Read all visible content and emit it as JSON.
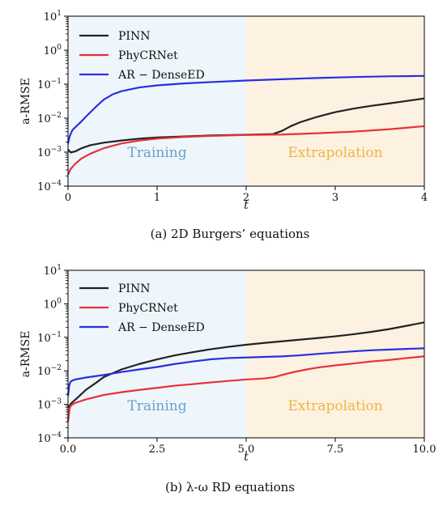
{
  "chart_data": [
    {
      "type": "line",
      "caption": "(a)  2D Burgers’ equations",
      "xlabel": "t",
      "ylabel": "a-RMSE",
      "xlim": [
        0,
        4
      ],
      "ylim": [
        0.0001,
        10
      ],
      "yscale": "log",
      "xticks": [
        0,
        1,
        2,
        3,
        4
      ],
      "xtick_labels": [
        "0",
        "1",
        "2",
        "3",
        "4"
      ],
      "yticks": [
        0.0001,
        0.001,
        0.01,
        0.1,
        1,
        10
      ],
      "ytick_labels": [
        {
          "base": "10",
          "exp": "−4"
        },
        {
          "base": "10",
          "exp": "−3"
        },
        {
          "base": "10",
          "exp": "−2"
        },
        {
          "base": "10",
          "exp": "−1"
        },
        {
          "base": "10",
          "exp": "0"
        },
        {
          "base": "10",
          "exp": "1"
        }
      ],
      "regions": [
        {
          "label": "Training",
          "x0": 0,
          "x1": 2,
          "color": "#eef6fb",
          "text_color": "#6b9fc8"
        },
        {
          "label": "Extrapolation",
          "x0": 2,
          "x1": 4,
          "color": "#fdf2e1",
          "text_color": "#f0b342"
        }
      ],
      "legend_position": "top-left",
      "series": [
        {
          "name": "PINN",
          "color": "#222222",
          "points": [
            [
              0,
              0.0012
            ],
            [
              0.03,
              0.00098
            ],
            [
              0.08,
              0.00105
            ],
            [
              0.15,
              0.0013
            ],
            [
              0.25,
              0.0016
            ],
            [
              0.4,
              0.0019
            ],
            [
              0.6,
              0.0022
            ],
            [
              0.8,
              0.0025
            ],
            [
              1,
              0.0027
            ],
            [
              1.3,
              0.0029
            ],
            [
              1.6,
              0.0031
            ],
            [
              1.9,
              0.0032
            ],
            [
              2.1,
              0.0033
            ],
            [
              2.3,
              0.0034
            ],
            [
              2.4,
              0.0042
            ],
            [
              2.5,
              0.0058
            ],
            [
              2.6,
              0.0075
            ],
            [
              2.8,
              0.011
            ],
            [
              3,
              0.015
            ],
            [
              3.2,
              0.019
            ],
            [
              3.4,
              0.023
            ],
            [
              3.6,
              0.027
            ],
            [
              3.8,
              0.032
            ],
            [
              4,
              0.038
            ]
          ]
        },
        {
          "name": "PhyCRNet",
          "color": "#e8303a",
          "points": [
            [
              0,
              0.00022
            ],
            [
              0.03,
              0.00032
            ],
            [
              0.08,
              0.00045
            ],
            [
              0.15,
              0.00065
            ],
            [
              0.25,
              0.0009
            ],
            [
              0.4,
              0.0013
            ],
            [
              0.6,
              0.0018
            ],
            [
              0.8,
              0.0022
            ],
            [
              1,
              0.0025
            ],
            [
              1.3,
              0.0028
            ],
            [
              1.6,
              0.003
            ],
            [
              2,
              0.0032
            ],
            [
              2.4,
              0.0033
            ],
            [
              2.8,
              0.0036
            ],
            [
              3.2,
              0.004
            ],
            [
              3.6,
              0.0047
            ],
            [
              4,
              0.0058
            ]
          ]
        },
        {
          "name": "AR − DenseED",
          "color": "#2a2ee0",
          "points": [
            [
              0,
              0.0018
            ],
            [
              0.02,
              0.003
            ],
            [
              0.05,
              0.0045
            ],
            [
              0.1,
              0.006
            ],
            [
              0.15,
              0.008
            ],
            [
              0.2,
              0.011
            ],
            [
              0.3,
              0.02
            ],
            [
              0.4,
              0.035
            ],
            [
              0.5,
              0.05
            ],
            [
              0.6,
              0.062
            ],
            [
              0.8,
              0.08
            ],
            [
              1,
              0.092
            ],
            [
              1.3,
              0.105
            ],
            [
              1.6,
              0.115
            ],
            [
              2,
              0.128
            ],
            [
              2.4,
              0.14
            ],
            [
              2.8,
              0.152
            ],
            [
              3.2,
              0.162
            ],
            [
              3.6,
              0.17
            ],
            [
              4,
              0.175
            ]
          ]
        }
      ]
    },
    {
      "type": "line",
      "caption": "(b)  λ-ω RD equations",
      "xlabel": "t",
      "ylabel": "a-RMSE",
      "xlim": [
        0,
        10
      ],
      "ylim": [
        0.0001,
        10
      ],
      "yscale": "log",
      "xticks": [
        0,
        2.5,
        5,
        7.5,
        10
      ],
      "xtick_labels": [
        "0.0",
        "2.5",
        "5.0",
        "7.5",
        "10.0"
      ],
      "yticks": [
        0.0001,
        0.001,
        0.01,
        0.1,
        1,
        10
      ],
      "ytick_labels": [
        {
          "base": "10",
          "exp": "−4"
        },
        {
          "base": "10",
          "exp": "−3"
        },
        {
          "base": "10",
          "exp": "−2"
        },
        {
          "base": "10",
          "exp": "−1"
        },
        {
          "base": "10",
          "exp": "0"
        },
        {
          "base": "10",
          "exp": "1"
        }
      ],
      "regions": [
        {
          "label": "Training",
          "x0": 0,
          "x1": 5,
          "color": "#eef6fb",
          "text_color": "#6b9fc8"
        },
        {
          "label": "Extrapolation",
          "x0": 5,
          "x1": 10,
          "color": "#fdf2e1",
          "text_color": "#f0b342"
        }
      ],
      "legend_position": "top-left",
      "series": [
        {
          "name": "PINN",
          "color": "#222222",
          "points": [
            [
              0,
              0.0008
            ],
            [
              0.1,
              0.0011
            ],
            [
              0.3,
              0.0017
            ],
            [
              0.5,
              0.0027
            ],
            [
              0.8,
              0.0045
            ],
            [
              1,
              0.0065
            ],
            [
              1.5,
              0.011
            ],
            [
              2,
              0.016
            ],
            [
              2.5,
              0.022
            ],
            [
              3,
              0.029
            ],
            [
              3.5,
              0.036
            ],
            [
              4,
              0.044
            ],
            [
              4.5,
              0.052
            ],
            [
              5,
              0.06
            ],
            [
              5.5,
              0.068
            ],
            [
              6,
              0.076
            ],
            [
              6.5,
              0.085
            ],
            [
              7,
              0.095
            ],
            [
              7.5,
              0.107
            ],
            [
              8,
              0.123
            ],
            [
              8.5,
              0.145
            ],
            [
              9,
              0.175
            ],
            [
              9.5,
              0.22
            ],
            [
              10,
              0.28
            ]
          ]
        },
        {
          "name": "PhyCRNet",
          "color": "#e8303a",
          "points": [
            [
              0,
              0.0003
            ],
            [
              0.05,
              0.0008
            ],
            [
              0.1,
              0.00095
            ],
            [
              0.2,
              0.0011
            ],
            [
              0.5,
              0.0014
            ],
            [
              1,
              0.0019
            ],
            [
              1.5,
              0.0023
            ],
            [
              2,
              0.0027
            ],
            [
              2.5,
              0.0031
            ],
            [
              3,
              0.0036
            ],
            [
              3.5,
              0.004
            ],
            [
              4,
              0.0045
            ],
            [
              4.5,
              0.005
            ],
            [
              5,
              0.0055
            ],
            [
              5.5,
              0.0059
            ],
            [
              5.8,
              0.0065
            ],
            [
              6,
              0.0075
            ],
            [
              6.3,
              0.009
            ],
            [
              6.7,
              0.011
            ],
            [
              7,
              0.0125
            ],
            [
              7.5,
              0.0145
            ],
            [
              8,
              0.0165
            ],
            [
              8.5,
              0.019
            ],
            [
              9,
              0.021
            ],
            [
              9.5,
              0.024
            ],
            [
              10,
              0.027
            ]
          ]
        },
        {
          "name": "AR − DenseED",
          "color": "#2a2ee0",
          "points": [
            [
              0,
              0.0018
            ],
            [
              0.03,
              0.0035
            ],
            [
              0.06,
              0.0045
            ],
            [
              0.1,
              0.005
            ],
            [
              0.2,
              0.0055
            ],
            [
              0.5,
              0.0063
            ],
            [
              1,
              0.0075
            ],
            [
              1.5,
              0.0092
            ],
            [
              2,
              0.011
            ],
            [
              2.5,
              0.013
            ],
            [
              3,
              0.016
            ],
            [
              3.5,
              0.019
            ],
            [
              4,
              0.022
            ],
            [
              4.5,
              0.024
            ],
            [
              5,
              0.025
            ],
            [
              5.5,
              0.026
            ],
            [
              6,
              0.027
            ],
            [
              6.5,
              0.029
            ],
            [
              7,
              0.032
            ],
            [
              7.5,
              0.035
            ],
            [
              8,
              0.038
            ],
            [
              8.5,
              0.041
            ],
            [
              9,
              0.043
            ],
            [
              9.5,
              0.045
            ],
            [
              10,
              0.047
            ]
          ]
        }
      ]
    }
  ]
}
